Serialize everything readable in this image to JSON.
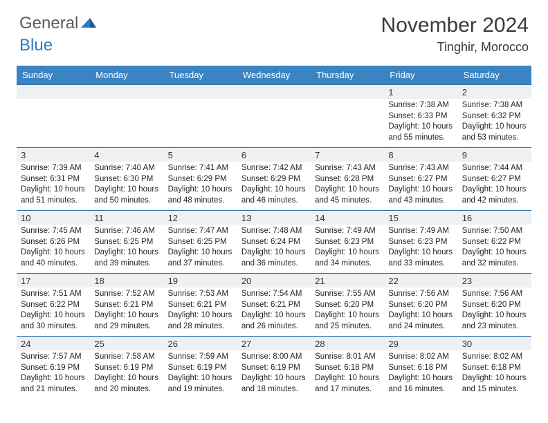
{
  "brand": {
    "part1": "General",
    "part2": "Blue"
  },
  "title": "November 2024",
  "location": "Tinghir, Morocco",
  "colors": {
    "header_bg": "#3b84c4",
    "header_text": "#ffffff",
    "daynum_bg": "#eef0f2",
    "border": "#2f6fa8",
    "body_text": "#262626",
    "title_text": "#3a3a3a",
    "logo_gray": "#5a5a5a",
    "logo_blue": "#2f7bbf"
  },
  "day_names": [
    "Sunday",
    "Monday",
    "Tuesday",
    "Wednesday",
    "Thursday",
    "Friday",
    "Saturday"
  ],
  "weeks": [
    [
      {
        "n": "",
        "sr": "",
        "ss": "",
        "dl": ""
      },
      {
        "n": "",
        "sr": "",
        "ss": "",
        "dl": ""
      },
      {
        "n": "",
        "sr": "",
        "ss": "",
        "dl": ""
      },
      {
        "n": "",
        "sr": "",
        "ss": "",
        "dl": ""
      },
      {
        "n": "",
        "sr": "",
        "ss": "",
        "dl": ""
      },
      {
        "n": "1",
        "sr": "Sunrise: 7:38 AM",
        "ss": "Sunset: 6:33 PM",
        "dl": "Daylight: 10 hours and 55 minutes."
      },
      {
        "n": "2",
        "sr": "Sunrise: 7:38 AM",
        "ss": "Sunset: 6:32 PM",
        "dl": "Daylight: 10 hours and 53 minutes."
      }
    ],
    [
      {
        "n": "3",
        "sr": "Sunrise: 7:39 AM",
        "ss": "Sunset: 6:31 PM",
        "dl": "Daylight: 10 hours and 51 minutes."
      },
      {
        "n": "4",
        "sr": "Sunrise: 7:40 AM",
        "ss": "Sunset: 6:30 PM",
        "dl": "Daylight: 10 hours and 50 minutes."
      },
      {
        "n": "5",
        "sr": "Sunrise: 7:41 AM",
        "ss": "Sunset: 6:29 PM",
        "dl": "Daylight: 10 hours and 48 minutes."
      },
      {
        "n": "6",
        "sr": "Sunrise: 7:42 AM",
        "ss": "Sunset: 6:29 PM",
        "dl": "Daylight: 10 hours and 46 minutes."
      },
      {
        "n": "7",
        "sr": "Sunrise: 7:43 AM",
        "ss": "Sunset: 6:28 PM",
        "dl": "Daylight: 10 hours and 45 minutes."
      },
      {
        "n": "8",
        "sr": "Sunrise: 7:43 AM",
        "ss": "Sunset: 6:27 PM",
        "dl": "Daylight: 10 hours and 43 minutes."
      },
      {
        "n": "9",
        "sr": "Sunrise: 7:44 AM",
        "ss": "Sunset: 6:27 PM",
        "dl": "Daylight: 10 hours and 42 minutes."
      }
    ],
    [
      {
        "n": "10",
        "sr": "Sunrise: 7:45 AM",
        "ss": "Sunset: 6:26 PM",
        "dl": "Daylight: 10 hours and 40 minutes."
      },
      {
        "n": "11",
        "sr": "Sunrise: 7:46 AM",
        "ss": "Sunset: 6:25 PM",
        "dl": "Daylight: 10 hours and 39 minutes."
      },
      {
        "n": "12",
        "sr": "Sunrise: 7:47 AM",
        "ss": "Sunset: 6:25 PM",
        "dl": "Daylight: 10 hours and 37 minutes."
      },
      {
        "n": "13",
        "sr": "Sunrise: 7:48 AM",
        "ss": "Sunset: 6:24 PM",
        "dl": "Daylight: 10 hours and 36 minutes."
      },
      {
        "n": "14",
        "sr": "Sunrise: 7:49 AM",
        "ss": "Sunset: 6:23 PM",
        "dl": "Daylight: 10 hours and 34 minutes."
      },
      {
        "n": "15",
        "sr": "Sunrise: 7:49 AM",
        "ss": "Sunset: 6:23 PM",
        "dl": "Daylight: 10 hours and 33 minutes."
      },
      {
        "n": "16",
        "sr": "Sunrise: 7:50 AM",
        "ss": "Sunset: 6:22 PM",
        "dl": "Daylight: 10 hours and 32 minutes."
      }
    ],
    [
      {
        "n": "17",
        "sr": "Sunrise: 7:51 AM",
        "ss": "Sunset: 6:22 PM",
        "dl": "Daylight: 10 hours and 30 minutes."
      },
      {
        "n": "18",
        "sr": "Sunrise: 7:52 AM",
        "ss": "Sunset: 6:21 PM",
        "dl": "Daylight: 10 hours and 29 minutes."
      },
      {
        "n": "19",
        "sr": "Sunrise: 7:53 AM",
        "ss": "Sunset: 6:21 PM",
        "dl": "Daylight: 10 hours and 28 minutes."
      },
      {
        "n": "20",
        "sr": "Sunrise: 7:54 AM",
        "ss": "Sunset: 6:21 PM",
        "dl": "Daylight: 10 hours and 26 minutes."
      },
      {
        "n": "21",
        "sr": "Sunrise: 7:55 AM",
        "ss": "Sunset: 6:20 PM",
        "dl": "Daylight: 10 hours and 25 minutes."
      },
      {
        "n": "22",
        "sr": "Sunrise: 7:56 AM",
        "ss": "Sunset: 6:20 PM",
        "dl": "Daylight: 10 hours and 24 minutes."
      },
      {
        "n": "23",
        "sr": "Sunrise: 7:56 AM",
        "ss": "Sunset: 6:20 PM",
        "dl": "Daylight: 10 hours and 23 minutes."
      }
    ],
    [
      {
        "n": "24",
        "sr": "Sunrise: 7:57 AM",
        "ss": "Sunset: 6:19 PM",
        "dl": "Daylight: 10 hours and 21 minutes."
      },
      {
        "n": "25",
        "sr": "Sunrise: 7:58 AM",
        "ss": "Sunset: 6:19 PM",
        "dl": "Daylight: 10 hours and 20 minutes."
      },
      {
        "n": "26",
        "sr": "Sunrise: 7:59 AM",
        "ss": "Sunset: 6:19 PM",
        "dl": "Daylight: 10 hours and 19 minutes."
      },
      {
        "n": "27",
        "sr": "Sunrise: 8:00 AM",
        "ss": "Sunset: 6:19 PM",
        "dl": "Daylight: 10 hours and 18 minutes."
      },
      {
        "n": "28",
        "sr": "Sunrise: 8:01 AM",
        "ss": "Sunset: 6:18 PM",
        "dl": "Daylight: 10 hours and 17 minutes."
      },
      {
        "n": "29",
        "sr": "Sunrise: 8:02 AM",
        "ss": "Sunset: 6:18 PM",
        "dl": "Daylight: 10 hours and 16 minutes."
      },
      {
        "n": "30",
        "sr": "Sunrise: 8:02 AM",
        "ss": "Sunset: 6:18 PM",
        "dl": "Daylight: 10 hours and 15 minutes."
      }
    ]
  ]
}
